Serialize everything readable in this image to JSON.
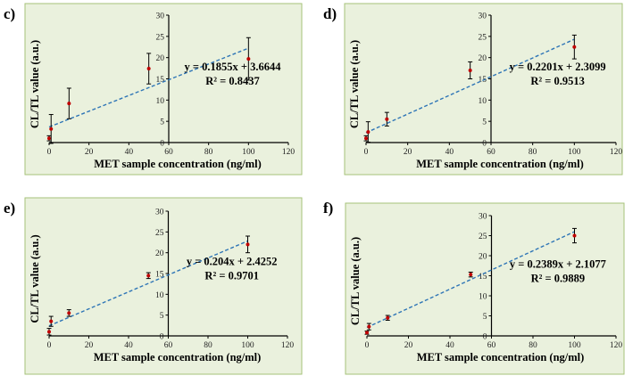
{
  "chart_data": [
    {
      "type": "scatter",
      "panel_label": "c)",
      "xlabel": "MET sample concentration (ng/ml)",
      "ylabel": "CL/TL value (a.u.)",
      "xlim": [
        0,
        120
      ],
      "ylim": [
        0,
        30
      ],
      "x_ticks": [
        0,
        20,
        40,
        60,
        80,
        100,
        120
      ],
      "y_ticks": [
        0,
        5,
        10,
        15,
        20,
        25,
        30
      ],
      "series": [
        {
          "x": [
            0,
            1,
            10,
            50,
            100
          ],
          "y": [
            1.0,
            3.2,
            9.2,
            17.4,
            19.7
          ],
          "error": [
            0.6,
            3.4,
            3.6,
            3.6,
            5.0
          ]
        }
      ],
      "trendline": {
        "slope": 0.1855,
        "intercept": 3.6644,
        "equation": "y = 0.1855x + 3.6644",
        "r2": "R² = 0.8437"
      },
      "colors": {
        "point": "#c00000",
        "trendline": "#2e75b6",
        "plot_bg": "#eaf1dd",
        "plot_border": "#a6c279"
      }
    },
    {
      "type": "scatter",
      "panel_label": "d)",
      "xlabel": "MET sample concentration (ng/ml)",
      "ylabel": "CL/TL value (a.u.)",
      "xlim": [
        0,
        120
      ],
      "ylim": [
        0,
        30
      ],
      "x_ticks": [
        0,
        20,
        40,
        60,
        80,
        100,
        120
      ],
      "y_ticks": [
        0,
        5,
        10,
        15,
        20,
        25,
        30
      ],
      "series": [
        {
          "x": [
            0,
            1,
            10,
            50,
            100
          ],
          "y": [
            1.0,
            2.5,
            5.5,
            17.0,
            22.5
          ],
          "error": [
            0.6,
            2.4,
            1.6,
            2.0,
            2.8
          ]
        }
      ],
      "trendline": {
        "slope": 0.2201,
        "intercept": 2.3099,
        "equation": "y = 0.2201x + 2.3099",
        "r2": "R² = 0.9513"
      },
      "colors": {
        "point": "#c00000",
        "trendline": "#2e75b6",
        "plot_bg": "#eaf1dd",
        "plot_border": "#a6c279"
      }
    },
    {
      "type": "scatter",
      "panel_label": "e)",
      "xlabel": "MET sample concentration (ng/ml)",
      "ylabel": "CL/TL value (a.u.)",
      "xlim": [
        0,
        120
      ],
      "ylim": [
        0,
        30
      ],
      "x_ticks": [
        0,
        20,
        40,
        60,
        80,
        100,
        120
      ],
      "y_ticks": [
        0,
        5,
        10,
        15,
        20,
        25,
        30
      ],
      "series": [
        {
          "x": [
            0,
            1,
            10,
            50,
            100
          ],
          "y": [
            1.0,
            3.5,
            5.5,
            14.5,
            22.0
          ],
          "error": [
            0.8,
            1.2,
            0.8,
            0.7,
            2.0
          ]
        }
      ],
      "trendline": {
        "slope": 0.204,
        "intercept": 2.4252,
        "equation": "y = 0.204x + 2.4252",
        "r2": "R² = 0.9701"
      },
      "colors": {
        "point": "#c00000",
        "trendline": "#2e75b6",
        "plot_bg": "#eaf1dd",
        "plot_border": "#a6c279"
      }
    },
    {
      "type": "scatter",
      "panel_label": "f)",
      "xlabel": "MET sample concentration (ng/ml)",
      "ylabel": "CL/TL value (a.u.)",
      "xlim": [
        0,
        120
      ],
      "ylim": [
        0,
        30
      ],
      "x_ticks": [
        0,
        20,
        40,
        60,
        80,
        100,
        120
      ],
      "y_ticks": [
        0,
        5,
        10,
        15,
        20,
        25,
        30
      ],
      "series": [
        {
          "x": [
            0,
            1,
            10,
            50,
            100
          ],
          "y": [
            0.8,
            2.3,
            4.5,
            15.3,
            25.0
          ],
          "error": [
            0.4,
            0.8,
            0.6,
            0.6,
            1.8
          ]
        }
      ],
      "trendline": {
        "slope": 0.2389,
        "intercept": 2.1077,
        "equation": "y = 0.2389x + 2.1077",
        "r2": "R² = 0.9889"
      },
      "colors": {
        "point": "#c00000",
        "trendline": "#2e75b6",
        "plot_bg": "#eaf1dd",
        "plot_border": "#a6c279"
      }
    }
  ]
}
